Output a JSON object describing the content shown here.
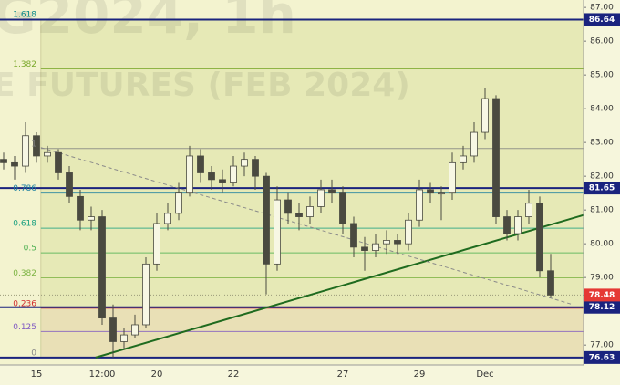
{
  "chart_data": {
    "type": "candlestick",
    "watermark": [
      "G2024, 1h",
      "E FUTURES (FEB 2024)"
    ],
    "categories": [
      null,
      null,
      null,
      "15",
      null,
      null,
      null,
      null,
      null,
      "12:00",
      null,
      null,
      null,
      null,
      "20",
      null,
      null,
      null,
      null,
      null,
      null,
      "22",
      null,
      null,
      null,
      null,
      null,
      null,
      null,
      null,
      null,
      "27",
      null,
      null,
      null,
      null,
      null,
      null,
      "29",
      null,
      null,
      null,
      null,
      null,
      "Dec",
      null,
      null,
      null,
      null,
      null,
      null
    ],
    "open": [
      82.5,
      82.4,
      82.3,
      83.2,
      82.6,
      82.7,
      82.1,
      81.4,
      80.7,
      80.8,
      77.8,
      77.1,
      77.3,
      77.6,
      79.4,
      80.6,
      80.9,
      81.5,
      82.6,
      82.1,
      81.9,
      81.8,
      82.3,
      82.5,
      82.0,
      79.4,
      81.3,
      80.9,
      80.8,
      81.1,
      81.6,
      81.5,
      80.6,
      79.9,
      79.8,
      80.0,
      80.1,
      80.0,
      80.7,
      81.6,
      81.5,
      81.5,
      82.4,
      82.6,
      83.3,
      84.3,
      80.8,
      80.3,
      80.8,
      81.2,
      79.2
    ],
    "high": [
      82.7,
      82.6,
      83.6,
      83.3,
      82.9,
      82.8,
      82.3,
      81.6,
      81.1,
      81.0,
      78.2,
      77.5,
      77.9,
      79.6,
      80.9,
      81.2,
      81.8,
      82.9,
      82.8,
      82.3,
      82.2,
      82.6,
      82.7,
      82.6,
      82.1,
      81.7,
      81.5,
      81.2,
      81.4,
      81.9,
      81.9,
      81.7,
      80.8,
      80.2,
      80.3,
      80.4,
      80.3,
      80.9,
      81.9,
      81.8,
      81.7,
      82.7,
      82.9,
      83.6,
      84.6,
      84.4,
      81.0,
      81.0,
      81.6,
      81.4,
      79.7
    ],
    "low": [
      82.2,
      81.9,
      82.1,
      82.4,
      82.4,
      81.9,
      81.2,
      80.4,
      80.4,
      77.6,
      76.63,
      76.9,
      77.2,
      77.5,
      79.2,
      80.4,
      80.7,
      81.4,
      81.8,
      81.6,
      81.5,
      81.7,
      82.0,
      81.6,
      78.5,
      79.2,
      80.6,
      80.4,
      80.6,
      80.9,
      81.2,
      80.3,
      79.6,
      79.2,
      79.6,
      79.7,
      79.7,
      79.8,
      80.5,
      81.2,
      80.7,
      81.3,
      82.2,
      82.4,
      83.1,
      80.6,
      80.1,
      80.1,
      80.6,
      79.0,
      78.4
    ],
    "close": [
      82.4,
      82.3,
      83.2,
      82.6,
      82.7,
      82.1,
      81.4,
      80.7,
      80.8,
      77.8,
      77.1,
      77.3,
      77.6,
      79.4,
      80.6,
      80.9,
      81.5,
      82.6,
      82.1,
      81.9,
      81.8,
      82.3,
      82.5,
      82.0,
      79.4,
      81.3,
      80.9,
      80.8,
      81.1,
      81.6,
      81.5,
      80.6,
      79.9,
      79.8,
      80.0,
      80.1,
      80.0,
      80.7,
      81.6,
      81.5,
      81.5,
      82.4,
      82.6,
      83.3,
      84.3,
      80.8,
      80.3,
      80.8,
      81.2,
      79.2,
      78.48
    ],
    "up_color": "#f7f7e4",
    "down_color": "#4a4a40",
    "wick_color": "#4a4a40",
    "ylim": [
      76.41,
      87.22
    ],
    "yticks": [
      {
        "value": 77,
        "label": "77.00"
      },
      {
        "value": 78,
        "label": "78.00"
      },
      {
        "value": 79,
        "label": "79.00"
      },
      {
        "value": 80,
        "label": "80.00"
      },
      {
        "value": 81,
        "label": "81.00"
      },
      {
        "value": 82,
        "label": "82.00"
      },
      {
        "value": 83,
        "label": "83.00"
      },
      {
        "value": 84,
        "label": "84.00"
      },
      {
        "value": 85,
        "label": "85.00"
      },
      {
        "value": 86,
        "label": "86.00"
      },
      {
        "value": 87,
        "label": "87.00"
      }
    ],
    "fib": {
      "start": 3.4,
      "levels": [
        {
          "label": "1.618",
          "value": 86.65,
          "color": "#0a8a8a"
        },
        {
          "label": "1.382",
          "value": 85.18,
          "color": "#7aa82a"
        },
        {
          "label": "1",
          "value": 82.82,
          "color": "#808080"
        },
        {
          "label": "0.786",
          "value": 81.5,
          "color": "#1a7fa0"
        },
        {
          "label": "0.618",
          "value": 80.46,
          "color": "#1aa080"
        },
        {
          "label": "0.5",
          "value": 79.73,
          "color": "#4caf50"
        },
        {
          "label": "0.382",
          "value": 78.99,
          "color": "#7cb342"
        },
        {
          "label": "0.236",
          "value": 78.09,
          "color": "#d32f2f"
        },
        {
          "label": "0.125",
          "value": 77.4,
          "color": "#7e57c2"
        },
        {
          "label": "0",
          "value": 76.63,
          "color": "#888888"
        }
      ]
    },
    "levels": [
      86.64,
      81.65,
      78.12,
      76.63
    ],
    "level_color": "#1a237e",
    "last_price": 78.48,
    "last_color": "#e53935",
    "trendlines": [
      {
        "color": "#1f6b1f",
        "dashed": false,
        "x": [
          8.4,
          53
        ],
        "y": [
          76.63,
          80.85
        ]
      },
      {
        "color": "#8a8a8a",
        "dashed": true,
        "x": [
          3.4,
          52
        ],
        "y": [
          82.85,
          78.2
        ]
      }
    ]
  }
}
